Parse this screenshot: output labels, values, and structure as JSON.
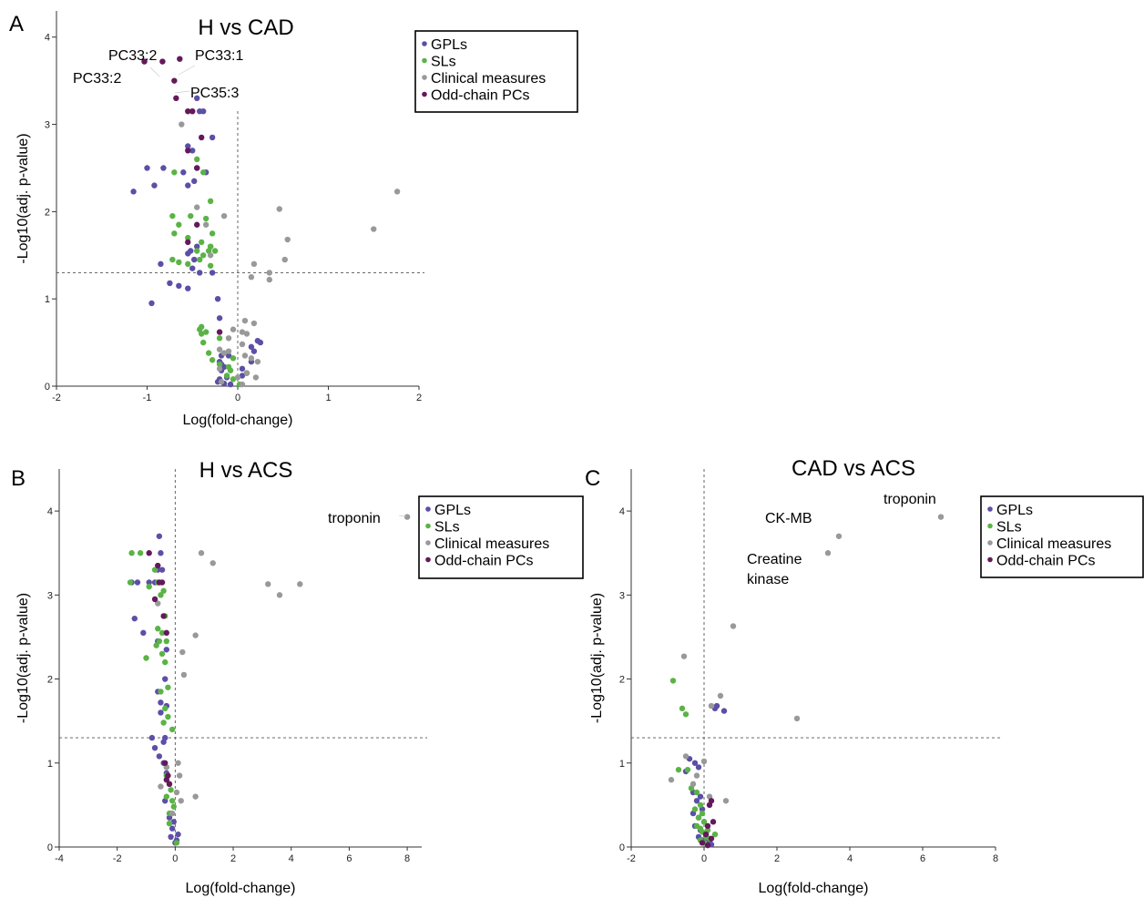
{
  "colors": {
    "GPLs": "#5b4fa6",
    "SLs": "#5bb346",
    "Clinical measures": "#999999",
    "Odd-chain PCs": "#64195a"
  },
  "chart_data": [
    {
      "type": "scatter",
      "panel": "A",
      "title": "H vs CAD",
      "xlabel": "Log(fold-change)",
      "ylabel": "-Log10(adj.  p-value)",
      "xlim": [
        -2,
        2
      ],
      "ylim": [
        0,
        4.3
      ],
      "xticks": [
        "-2",
        "-1",
        "0",
        "1",
        "2"
      ],
      "yticks": [
        "0",
        "1",
        "2",
        "3",
        "4"
      ],
      "threshold_y": 1.3,
      "threshold_x": 0,
      "grid": false,
      "legend": [
        "GPLs",
        "SLs",
        "Clinical measures",
        "Odd-chain PCs"
      ],
      "legend_position": "top-right",
      "annotations": [
        {
          "text": "PC33:2",
          "x": -0.83,
          "y": 3.72
        },
        {
          "text": "PC33:2",
          "x": -1.03,
          "y": 3.72
        },
        {
          "text": "PC33:1",
          "x": -0.64,
          "y": 3.75
        },
        {
          "text": "PC35:3",
          "x": -0.7,
          "y": 3.5
        }
      ],
      "series": [
        {
          "name": "GPLs",
          "x": [
            -0.45,
            -0.42,
            -0.38,
            -0.55,
            -0.28,
            -0.5,
            -0.45,
            -0.35,
            -1.0,
            -0.82,
            -0.92,
            -0.6,
            -0.55,
            -0.48,
            -1.15,
            -0.85,
            -0.5,
            -0.55,
            -0.45,
            -0.42,
            -0.28,
            -0.52,
            -0.48,
            -0.75,
            -0.65,
            -0.55,
            -0.22,
            -0.95,
            -0.2,
            0.22,
            0.25,
            0.15,
            0.18,
            -0.18,
            -0.2,
            0.15,
            -0.15,
            -0.18,
            0.1,
            0.05,
            -0.12,
            -0.2,
            -0.22,
            -0.15,
            -0.08,
            -0.1,
            -0.18,
            0.05
          ],
          "y": [
            3.3,
            3.15,
            3.15,
            2.75,
            2.85,
            2.7,
            2.5,
            2.45,
            2.5,
            2.5,
            2.3,
            2.45,
            2.3,
            2.35,
            2.23,
            1.4,
            1.35,
            1.52,
            1.6,
            1.3,
            1.3,
            1.55,
            1.45,
            1.18,
            1.15,
            1.12,
            1.0,
            0.95,
            0.78,
            0.52,
            0.5,
            0.45,
            0.4,
            0.35,
            0.28,
            0.28,
            0.22,
            0.18,
            0.15,
            0.12,
            0.1,
            0.08,
            0.05,
            0.03,
            0.02,
            0.35,
            0.25,
            0.2
          ]
        },
        {
          "name": "SLs",
          "x": [
            -0.7,
            -0.45,
            -0.38,
            -0.72,
            -0.65,
            -0.52,
            -0.3,
            -0.35,
            -0.7,
            -0.55,
            -0.4,
            -0.28,
            -0.3,
            -0.25,
            -0.45,
            -0.65,
            -0.55,
            -0.42,
            -0.3,
            -0.72,
            -0.32,
            -0.3,
            -0.38,
            -0.4,
            -0.42,
            -0.35,
            -0.4,
            -0.2,
            -0.38,
            -0.32,
            -0.28,
            -0.2,
            -0.05,
            -0.1,
            -0.08,
            -0.12,
            -0.05,
            0.02
          ],
          "y": [
            2.45,
            2.6,
            2.45,
            1.95,
            1.85,
            1.95,
            2.12,
            1.92,
            1.75,
            1.7,
            1.65,
            1.75,
            1.6,
            1.55,
            1.55,
            1.42,
            1.4,
            1.45,
            1.38,
            1.45,
            1.55,
            1.6,
            1.5,
            0.68,
            0.65,
            0.62,
            0.6,
            0.55,
            0.5,
            0.38,
            0.3,
            0.25,
            0.32,
            0.22,
            0.18,
            0.12,
            0.08,
            0.02
          ]
        },
        {
          "name": "Clinical measures",
          "x": [
            1.76,
            1.5,
            0.46,
            0.55,
            0.52,
            0.35,
            0.18,
            0.15,
            0.35,
            0.18,
            0.08,
            0.1,
            0.05,
            -0.05,
            -0.1,
            -0.2,
            0.05,
            0.08,
            -0.15,
            0.15,
            0.2,
            -0.2,
            0.22,
            0.1,
            -0.3,
            -0.15,
            -0.35,
            -0.45,
            -0.5,
            -0.62,
            -0.1,
            0.0,
            -0.18,
            0.05,
            0.1
          ],
          "y": [
            2.23,
            1.8,
            2.03,
            1.68,
            1.45,
            1.22,
            1.4,
            1.25,
            1.3,
            0.72,
            0.75,
            0.6,
            0.62,
            0.65,
            0.55,
            0.42,
            0.48,
            0.35,
            0.38,
            0.32,
            0.1,
            0.2,
            0.28,
            0.15,
            1.5,
            1.95,
            1.85,
            2.05,
            3.15,
            3.0,
            0.4,
            0.1,
            0.05,
            0.02,
            0.15
          ]
        },
        {
          "name": "Odd-chain PCs",
          "x": [
            -1.03,
            -0.83,
            -0.64,
            -0.7,
            -0.5,
            -0.55,
            -0.4,
            -0.45,
            -0.55,
            -0.45,
            -0.2,
            -0.55,
            -0.68
          ],
          "y": [
            3.72,
            3.72,
            3.75,
            3.5,
            3.15,
            2.7,
            2.85,
            2.5,
            1.65,
            1.85,
            0.62,
            3.15,
            3.3
          ]
        }
      ]
    },
    {
      "type": "scatter",
      "panel": "B",
      "title": "H vs ACS",
      "xlabel": "Log(fold-change)",
      "ylabel": "-Log10(adj.  p-value)",
      "xlim": [
        -4,
        8.5
      ],
      "ylim": [
        0,
        4.5
      ],
      "xticks": [
        "-4",
        "-2",
        "0",
        "2",
        "4",
        "6",
        "8"
      ],
      "yticks": [
        "0",
        "1",
        "2",
        "3",
        "4"
      ],
      "threshold_y": 1.3,
      "threshold_x": 0,
      "grid": false,
      "legend": [
        "GPLs",
        "SLs",
        "Clinical measures",
        "Odd-chain PCs"
      ],
      "legend_position": "top-right",
      "annotations": [
        {
          "text": "troponin",
          "x": 7.7,
          "y": 3.93
        }
      ],
      "series": [
        {
          "name": "GPLs",
          "x": [
            -0.55,
            -0.5,
            -0.6,
            -1.3,
            -1.5,
            -0.9,
            -0.7,
            -0.45,
            -1.4,
            -1.1,
            -0.6,
            -0.3,
            -0.35,
            -0.6,
            -0.5,
            -0.8,
            -0.35,
            -0.4,
            -0.3,
            -0.5,
            -0.7,
            -0.55,
            -0.4,
            -0.3,
            -0.35,
            -0.2,
            -0.1,
            -0.15,
            0.05,
            0.0,
            -0.05,
            0.1
          ],
          "y": [
            3.7,
            3.5,
            3.3,
            3.15,
            3.15,
            3.15,
            3.15,
            3.3,
            2.72,
            2.55,
            2.45,
            2.35,
            2.0,
            1.85,
            1.6,
            1.3,
            1.3,
            1.25,
            1.68,
            1.72,
            1.18,
            1.08,
            1.0,
            0.88,
            0.55,
            0.35,
            0.22,
            0.12,
            0.08,
            0.05,
            0.3,
            0.15
          ]
        },
        {
          "name": "SLs",
          "x": [
            -1.5,
            -1.55,
            -1.2,
            -0.9,
            -0.7,
            -0.6,
            -0.5,
            -0.4,
            -0.35,
            -0.6,
            -0.45,
            -0.3,
            -0.55,
            -0.65,
            -0.45,
            -1.0,
            -0.35,
            -0.25,
            -0.5,
            -0.35,
            -0.25,
            -0.4,
            -0.3,
            -0.2,
            -0.15,
            -0.3,
            -0.1,
            -0.05,
            -0.2,
            -0.2,
            -0.3,
            0.05,
            -0.1
          ],
          "y": [
            3.5,
            3.15,
            3.5,
            3.1,
            3.3,
            3.15,
            3.0,
            3.05,
            2.75,
            2.6,
            2.55,
            2.45,
            2.45,
            2.4,
            2.3,
            2.25,
            2.2,
            1.9,
            1.85,
            1.65,
            1.55,
            1.48,
            0.85,
            0.75,
            0.68,
            0.6,
            0.55,
            0.48,
            0.4,
            0.28,
            0.95,
            0.05,
            1.4
          ]
        },
        {
          "name": "Clinical measures",
          "x": [
            8.0,
            0.9,
            1.3,
            3.2,
            4.3,
            3.6,
            0.7,
            0.25,
            0.3,
            -0.6,
            -0.3,
            -0.5,
            0.1,
            0.15,
            0.7,
            0.2,
            0.05,
            -0.1
          ],
          "y": [
            3.93,
            3.5,
            3.38,
            3.13,
            3.13,
            3.0,
            2.52,
            2.32,
            2.05,
            2.9,
            0.95,
            0.72,
            1.0,
            0.85,
            0.6,
            0.55,
            0.65,
            0.4
          ]
        },
        {
          "name": "Odd-chain PCs",
          "x": [
            -0.9,
            -0.6,
            -0.55,
            -0.45,
            -0.7,
            -0.4,
            -0.3,
            -0.35,
            -0.25,
            -0.2,
            -0.3
          ],
          "y": [
            3.5,
            3.35,
            3.15,
            3.15,
            2.95,
            2.75,
            2.55,
            1.0,
            0.85,
            0.75,
            0.8
          ]
        }
      ]
    },
    {
      "type": "scatter",
      "panel": "C",
      "title": "CAD vs ACS",
      "xlabel": "Log(fold-change)",
      "ylabel": "-Log10(adj.  p-value)",
      "xlim": [
        -2,
        8
      ],
      "ylim": [
        0,
        4.5
      ],
      "xticks": [
        "-2",
        "0",
        "2",
        "4",
        "6",
        "8"
      ],
      "yticks": [
        "0",
        "1",
        "2",
        "3",
        "4"
      ],
      "threshold_y": 1.3,
      "threshold_x": 0,
      "grid": false,
      "legend": [
        "GPLs",
        "SLs",
        "Clinical measures",
        "Odd-chain PCs"
      ],
      "legend_position": "top-right",
      "annotations": [
        {
          "text": "troponin",
          "x": 5.45,
          "y": 3.93
        },
        {
          "text": "CK-MB",
          "x": 3.1,
          "y": 3.72
        },
        {
          "text": "Creatine kinase",
          "x": 2.4,
          "y": 3.45
        }
      ],
      "series": [
        {
          "name": "GPLs",
          "x": [
            0.35,
            0.55,
            0.3,
            -0.4,
            -0.25,
            -0.15,
            -0.5,
            -0.3,
            -0.1,
            -0.2,
            -0.05,
            -0.3,
            -0.15,
            0.0,
            -0.25,
            -0.1,
            0.05,
            -0.15,
            0.1,
            -0.05,
            0.15,
            0.2
          ],
          "y": [
            1.68,
            1.62,
            1.65,
            1.05,
            1.0,
            0.95,
            0.9,
            0.65,
            0.6,
            0.55,
            0.45,
            0.4,
            0.35,
            0.3,
            0.25,
            0.2,
            0.15,
            0.12,
            0.1,
            0.08,
            0.05,
            0.03
          ]
        },
        {
          "name": "SLs",
          "x": [
            -0.85,
            -0.6,
            -0.5,
            -0.7,
            -0.45,
            -0.35,
            -0.2,
            -0.1,
            -0.25,
            -0.05,
            -0.15,
            0.0,
            -0.2,
            -0.1,
            0.1,
            -0.05,
            0.05,
            0.15,
            -0.1,
            0.0,
            0.3
          ],
          "y": [
            1.98,
            1.65,
            1.58,
            0.92,
            0.92,
            0.7,
            0.65,
            0.5,
            0.45,
            0.4,
            0.35,
            0.3,
            0.25,
            0.22,
            0.2,
            0.18,
            0.12,
            0.1,
            0.08,
            0.05,
            0.15
          ]
        },
        {
          "name": "Clinical measures",
          "x": [
            6.5,
            3.7,
            3.4,
            0.8,
            2.55,
            0.45,
            0.2,
            -0.55,
            -0.5,
            0.0,
            -0.9,
            0.6,
            -0.2,
            0.15,
            -0.3
          ],
          "y": [
            3.93,
            3.7,
            3.5,
            2.63,
            1.53,
            1.8,
            1.68,
            2.27,
            1.08,
            1.02,
            0.8,
            0.55,
            0.85,
            0.6,
            0.75
          ]
        },
        {
          "name": "Odd-chain PCs",
          "x": [
            0.2,
            0.15,
            0.25,
            0.1,
            0.05,
            0.2,
            -0.05,
            0.1
          ],
          "y": [
            0.55,
            0.5,
            0.3,
            0.25,
            0.15,
            0.1,
            0.05,
            0.02
          ]
        }
      ]
    }
  ]
}
